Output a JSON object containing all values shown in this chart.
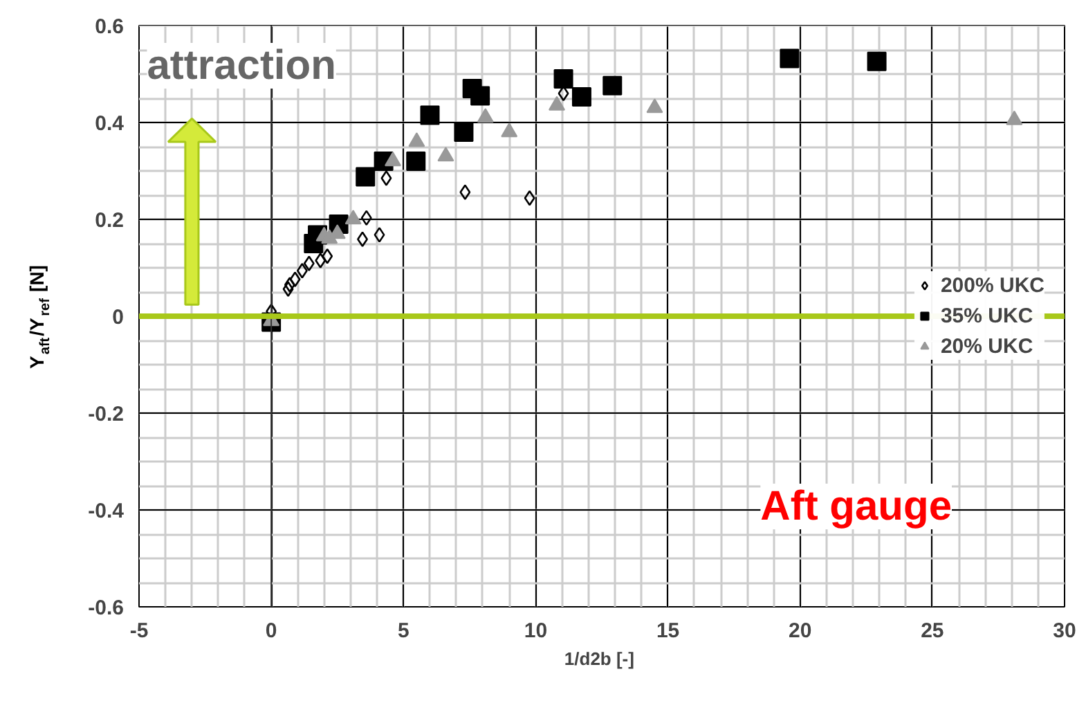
{
  "chart_data": {
    "type": "scatter",
    "xlabel": "1/d2b  [-]",
    "ylabel": "Y$_{aft}$/Y$_{ref}$ [N]",
    "xlim": [
      -5,
      30
    ],
    "ylim": [
      -0.6,
      0.6
    ],
    "xticks": [
      -5,
      0,
      5,
      10,
      15,
      20,
      25,
      30
    ],
    "yticks": [
      -0.6,
      -0.4,
      -0.2,
      0,
      0.2,
      0.4,
      0.6
    ],
    "grid": true,
    "legend": "right",
    "annotations": [
      "attraction",
      "Aft gauge"
    ],
    "ref_lines": [
      {
        "axis": "y",
        "value": 0,
        "color": "#a8c81a"
      }
    ],
    "series": [
      {
        "name": "200% UKC",
        "color": "#000000",
        "marker": "diamond",
        "x": [
          0,
          0.64,
          0.7,
          0.9,
          1.17,
          1.43,
          1.86,
          2.12,
          3.45,
          4.09,
          3.6,
          4.35,
          7.33,
          9.77,
          11.05
        ],
        "values": [
          0.01,
          0.056,
          0.065,
          0.076,
          0.094,
          0.109,
          0.115,
          0.124,
          0.159,
          0.168,
          0.203,
          0.285,
          0.256,
          0.244,
          0.46
        ]
      },
      {
        "name": "35% UKC",
        "color": "#000000",
        "marker": "square",
        "x": [
          0,
          1.6,
          1.75,
          2.55,
          3.56,
          4.25,
          5.47,
          6.0,
          7.28,
          7.6,
          7.9,
          11.05,
          11.74,
          12.9,
          19.6,
          22.9
        ],
        "values": [
          -0.012,
          0.15,
          0.168,
          0.19,
          0.288,
          0.32,
          0.32,
          0.415,
          0.38,
          0.47,
          0.455,
          0.49,
          0.453,
          0.476,
          0.532,
          0.526
        ]
      },
      {
        "name": "20% UKC",
        "color": "#999999",
        "marker": "triangle",
        "x": [
          0,
          2.0,
          2.2,
          2.5,
          3.1,
          4.6,
          5.5,
          6.6,
          8.1,
          9.0,
          10.8,
          14.5,
          28.1
        ],
        "values": [
          -0.01,
          0.165,
          0.16,
          0.17,
          0.2,
          0.32,
          0.36,
          0.33,
          0.41,
          0.38,
          0.435,
          0.43,
          0.405
        ]
      }
    ]
  }
}
